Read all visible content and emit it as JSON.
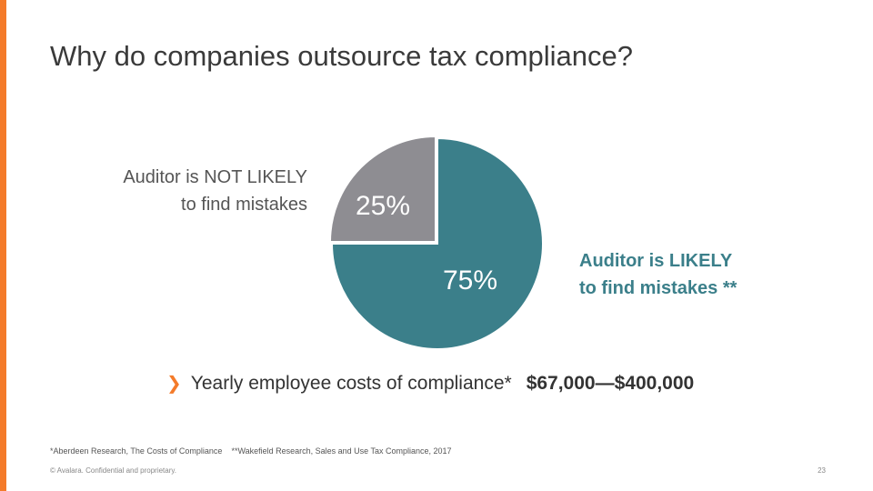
{
  "slide": {
    "title": "Why do companies outsource tax compliance?",
    "accent_color": "#f47b2a"
  },
  "chart_data": {
    "type": "pie",
    "slices": [
      {
        "label_lines": [
          "Auditor is NOT LIKELY",
          "to find mistakes"
        ],
        "value": 25,
        "value_label": "25%",
        "color": "#8e8d92"
      },
      {
        "label_lines": [
          "Auditor is LIKELY",
          "to find mistakes **"
        ],
        "value": 75,
        "value_label": "75%",
        "color": "#3b7f8a"
      }
    ]
  },
  "cost": {
    "icon": "chevron-right-icon",
    "label": "Yearly employee costs of compliance*",
    "amount": "$67,000—$400,000"
  },
  "footnotes": [
    "*Aberdeen Research, The Costs of Compliance",
    "**Wakefield Research, Sales and Use Tax Compliance, 2017"
  ],
  "footer": {
    "copyright": "© Avalara. Confidential and proprietary.",
    "page_number": "23"
  }
}
